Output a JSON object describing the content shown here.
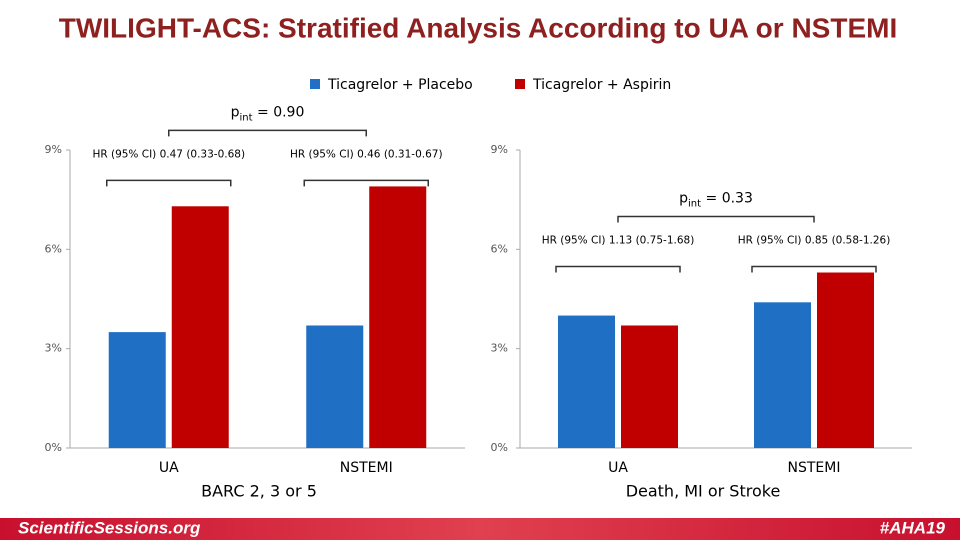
{
  "title": "TWILIGHT-ACS: Stratified Analysis According to UA or NSTEMI",
  "footer": {
    "left": "ScientificSessions.org",
    "right": "#AHA19"
  },
  "chart_data": [
    {
      "type": "bar",
      "x_label": "BARC 2, 3 or 5",
      "categories": [
        "UA",
        "NSTEMI"
      ],
      "series": [
        {
          "name": "Ticagrelor + Placebo",
          "color": "#1f6fc5",
          "values": [
            3.5,
            3.7
          ]
        },
        {
          "name": "Ticagrelor + Aspirin",
          "color": "#c00000",
          "values": [
            7.3,
            7.9
          ]
        }
      ],
      "ylim": [
        0,
        9
      ],
      "yticks": [
        {
          "value": 0,
          "label": "0%"
        },
        {
          "value": 3,
          "label": "3%"
        },
        {
          "value": 6,
          "label": "6%"
        },
        {
          "value": 9,
          "label": "9%"
        }
      ],
      "hr_labels": [
        "HR (95% CI) 0.47 (0.33-0.68)",
        "HR (95% CI) 0.46 (0.31-0.67)"
      ],
      "p_interaction": {
        "symbol": "p",
        "subscript": "int",
        "text": " = 0.90"
      }
    },
    {
      "type": "bar",
      "x_label": "Death, MI or Stroke",
      "categories": [
        "UA",
        "NSTEMI"
      ],
      "series": [
        {
          "name": "Ticagrelor + Placebo",
          "color": "#1f6fc5",
          "values": [
            4.0,
            4.4
          ]
        },
        {
          "name": "Ticagrelor + Aspirin",
          "color": "#c00000",
          "values": [
            3.7,
            5.3
          ]
        }
      ],
      "ylim": [
        0,
        9
      ],
      "yticks": [
        {
          "value": 0,
          "label": "0%"
        },
        {
          "value": 3,
          "label": "3%"
        },
        {
          "value": 6,
          "label": "6%"
        },
        {
          "value": 9,
          "label": "9%"
        }
      ],
      "hr_labels": [
        "HR (95% CI) 1.13 (0.75-1.68)",
        "HR (95% CI) 0.85 (0.58-1.26)"
      ],
      "p_interaction": {
        "symbol": "p",
        "subscript": "int",
        "text": " = 0.33"
      }
    }
  ]
}
